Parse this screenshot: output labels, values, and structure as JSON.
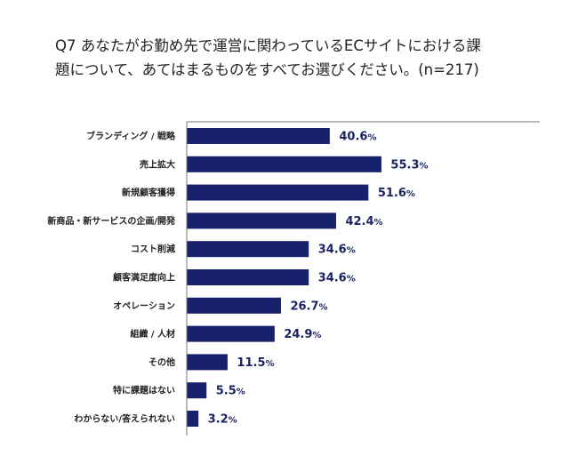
{
  "title_lines": [
    "Q7 あなたがお勤め先で運営に関わっているECサイトにおける課",
    "題について、あてはまるものをすべてお選びください。(n=217)"
  ],
  "colors": {
    "bar": "#18216b",
    "axis": "#777777",
    "label": "#1b2461",
    "text": "#222222"
  },
  "chart_data": {
    "type": "bar",
    "orientation": "horizontal",
    "title": "Q7 あなたがお勤め先で運営に関わっているECサイトにおける課題について、あてはまるものをすべてお選びください。(n=217)",
    "categories": [
      "ブランディング / 戦略",
      "売上拡大",
      "新規顧客獲得",
      "新商品・新サービスの企画/開発",
      "コスト削減",
      "顧客満足度向上",
      "オペレーション",
      "組織 / 人材",
      "その他",
      "特に課題はない",
      "わからない/答えられない"
    ],
    "values": [
      40.6,
      55.3,
      51.6,
      42.4,
      34.6,
      34.6,
      26.7,
      24.9,
      11.5,
      5.5,
      3.2
    ],
    "unit": "%",
    "xlim": [
      0,
      100
    ],
    "grid": false,
    "legend": "none"
  }
}
